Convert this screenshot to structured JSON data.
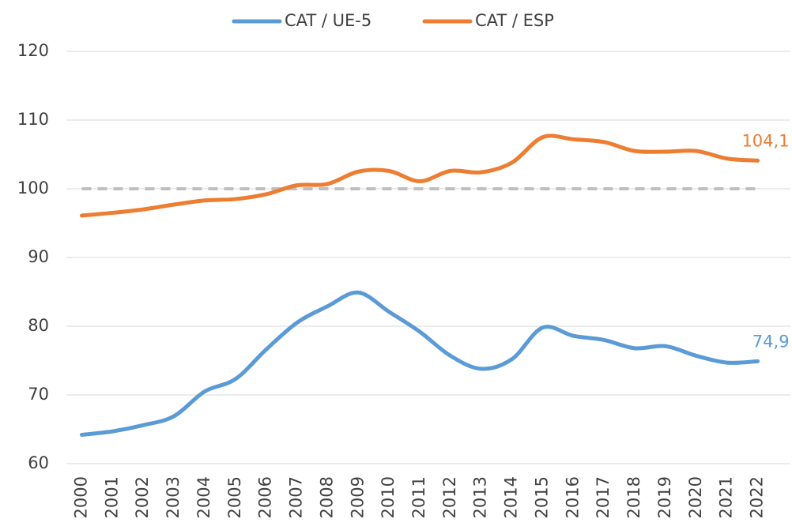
{
  "chart_data": {
    "type": "line",
    "categories": [
      "2000",
      "2001",
      "2002",
      "2003",
      "2004",
      "2005",
      "2006",
      "2007",
      "2008",
      "2009",
      "2010",
      "2011",
      "2012",
      "2013",
      "2014",
      "2015",
      "2016",
      "2017",
      "2018",
      "2019",
      "2020",
      "2021",
      "2022"
    ],
    "series": [
      {
        "name": "CAT / UE-5",
        "color": "#5b9bd5",
        "values": [
          64.2,
          64.7,
          65.6,
          66.9,
          70.5,
          72.3,
          76.6,
          80.5,
          82.9,
          84.9,
          82.1,
          79.2,
          75.7,
          73.8,
          75.2,
          79.8,
          78.6,
          78.0,
          76.8,
          77.1,
          75.7,
          74.7,
          74.9
        ],
        "value_labels": [
          null,
          null,
          null,
          null,
          null,
          null,
          null,
          null,
          null,
          null,
          null,
          null,
          null,
          null,
          null,
          null,
          null,
          null,
          null,
          null,
          null,
          null,
          "74,9"
        ]
      },
      {
        "name": "CAT / ESP",
        "color": "#ed7d31",
        "values": [
          96.1,
          96.5,
          97.0,
          97.7,
          98.3,
          98.5,
          99.2,
          100.5,
          100.7,
          102.5,
          102.6,
          101.1,
          102.6,
          102.4,
          103.8,
          107.5,
          107.2,
          106.8,
          105.5,
          105.4,
          105.5,
          104.4,
          104.1
        ],
        "value_labels": [
          null,
          null,
          null,
          null,
          null,
          null,
          null,
          null,
          null,
          null,
          null,
          null,
          null,
          null,
          null,
          null,
          null,
          null,
          null,
          null,
          null,
          null,
          "104,1"
        ]
      }
    ],
    "hlines": [
      {
        "value": 100,
        "color": "#bfbfbf"
      }
    ],
    "ylim": [
      60,
      120
    ],
    "yticks": [
      60,
      70,
      80,
      90,
      100,
      110,
      120
    ],
    "grid": true,
    "legend": "top",
    "smooth": true
  }
}
